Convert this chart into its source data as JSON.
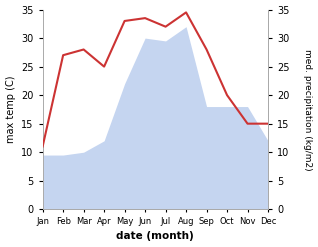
{
  "months": [
    "Jan",
    "Feb",
    "Mar",
    "Apr",
    "May",
    "Jun",
    "Jul",
    "Aug",
    "Sep",
    "Oct",
    "Nov",
    "Dec"
  ],
  "temperature": [
    11,
    27,
    28,
    25,
    33,
    33.5,
    32,
    34.5,
    28,
    20,
    15,
    15
  ],
  "precipitation": [
    9.5,
    9.5,
    10,
    12,
    22,
    30,
    29.5,
    32,
    18,
    18,
    18,
    12
  ],
  "temp_color": "#cc3333",
  "precip_color": "#c5d5f0",
  "ylabel_left": "max temp (C)",
  "ylabel_right": "med. precipitation (kg/m2)",
  "xlabel": "date (month)",
  "ylim": [
    0,
    35
  ],
  "yticks": [
    0,
    5,
    10,
    15,
    20,
    25,
    30,
    35
  ],
  "background_color": "#ffffff",
  "spine_color": "#aaaaaa"
}
